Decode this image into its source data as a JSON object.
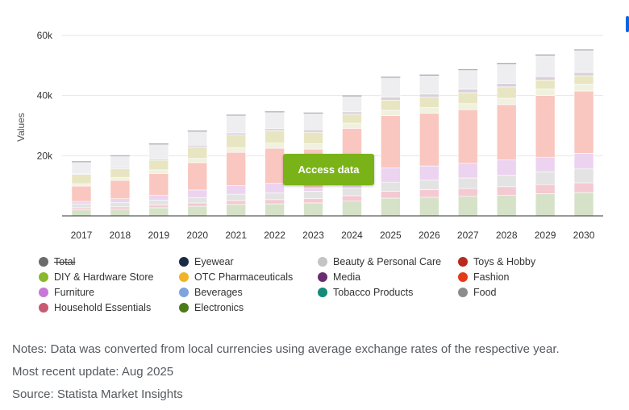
{
  "chart_data": {
    "type": "bar",
    "stacked": true,
    "title": "",
    "xlabel": "",
    "ylabel": "Values",
    "ylim": [
      0,
      60000
    ],
    "yticks": [
      {
        "value": 20000,
        "label": "20k"
      },
      {
        "value": 40000,
        "label": "40k"
      },
      {
        "value": 60000,
        "label": "60k"
      }
    ],
    "categories": [
      "2017",
      "2018",
      "2019",
      "2020",
      "2021",
      "2022",
      "2023",
      "2024",
      "2025",
      "2026",
      "2027",
      "2028",
      "2029",
      "2030"
    ],
    "series": [
      {
        "name": "Electronics",
        "color": "#d6e2c8",
        "values": [
          2000,
          2200,
          2700,
          3200,
          3800,
          4000,
          4300,
          4900,
          5900,
          6200,
          6500,
          6900,
          7400,
          7800
        ]
      },
      {
        "name": "Household Essentials",
        "color": "#f4c9d2",
        "values": [
          700,
          800,
          900,
          1100,
          1300,
          1400,
          1500,
          1800,
          2300,
          2500,
          2600,
          2800,
          3000,
          3200
        ]
      },
      {
        "name": "Beauty & Personal Care",
        "color": "#e3e3e3",
        "values": [
          1300,
          1400,
          1600,
          1800,
          2100,
          2300,
          2400,
          2600,
          3000,
          3200,
          3500,
          3800,
          4200,
          4600
        ]
      },
      {
        "name": "Furniture",
        "color": "#ecd3f0",
        "values": [
          800,
          1300,
          1700,
          2500,
          2900,
          3100,
          1000,
          1900,
          4800,
          4700,
          4900,
          5100,
          4900,
          5200
        ]
      },
      {
        "name": "Fashion",
        "color": "#f9c7bf",
        "values": [
          5100,
          6100,
          7200,
          9100,
          11000,
          11700,
          13000,
          17900,
          17300,
          17500,
          17800,
          18400,
          20500,
          20700
        ]
      },
      {
        "name": "DIY & Hardware Store",
        "color": "#f0f1df",
        "values": [
          800,
          900,
          1200,
          1400,
          1600,
          1700,
          1800,
          1700,
          1800,
          1900,
          2000,
          2100,
          2200,
          2300
        ]
      },
      {
        "name": "OTC Pharmaceuticals",
        "color": "#e8e6c2",
        "values": [
          3100,
          3000,
          3200,
          3800,
          4200,
          4200,
          3800,
          3000,
          3400,
          3500,
          3700,
          3800,
          3000,
          2800
        ]
      },
      {
        "name": "Media",
        "color": "#d9d0dc",
        "values": [
          300,
          400,
          500,
          600,
          700,
          700,
          800,
          800,
          1000,
          1000,
          1100,
          1100,
          1100,
          1100
        ]
      },
      {
        "name": "Food",
        "color": "#eeeef1",
        "values": [
          3900,
          3900,
          4900,
          4700,
          5900,
          5500,
          5600,
          5300,
          6600,
          6300,
          6500,
          6700,
          7200,
          7500
        ]
      }
    ]
  },
  "legend": [
    {
      "label": "Total",
      "color": "#6b6b6b",
      "hidden": true
    },
    {
      "label": "Eyewear",
      "color": "#1a2b45"
    },
    {
      "label": "Beauty & Personal Care",
      "color": "#c4c4c4"
    },
    {
      "label": "Toys & Hobby",
      "color": "#b82a1d"
    },
    {
      "label": "DIY & Hardware Store",
      "color": "#8bb82c"
    },
    {
      "label": "OTC Pharmaceuticals",
      "color": "#f0b429"
    },
    {
      "label": "Media",
      "color": "#6a2c70"
    },
    {
      "label": "Fashion",
      "color": "#e53a18"
    },
    {
      "label": "Furniture",
      "color": "#c876d8"
    },
    {
      "label": "Beverages",
      "color": "#7da4de"
    },
    {
      "label": "Tobacco Products",
      "color": "#138a7a"
    },
    {
      "label": "Food",
      "color": "#8c8c8c"
    },
    {
      "label": "Household Essentials",
      "color": "#c85a72"
    },
    {
      "label": "Electronics",
      "color": "#4d7a19"
    }
  ],
  "button": {
    "access_label": "Access data"
  },
  "notes": {
    "line1": "Notes: Data was converted from local currencies using average exchange rates of the respective year.",
    "line2": "Most recent update: Aug 2025",
    "line3": "Source: Statista Market Insights"
  }
}
